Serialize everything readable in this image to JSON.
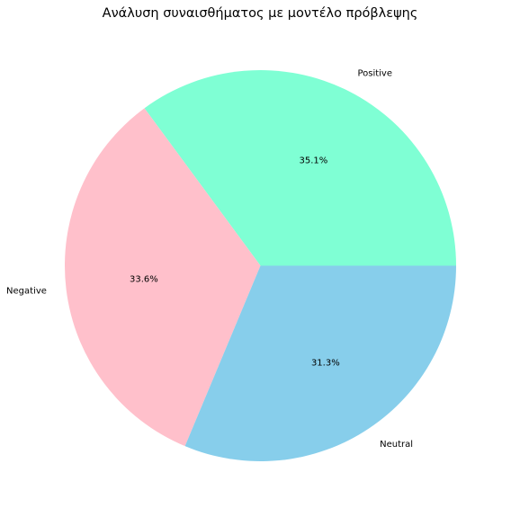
{
  "chart_data": {
    "type": "pie",
    "title": "Ανάλυση συναισθήματος με μοντέλο πρόβλεψης",
    "slices": [
      {
        "label": "Positive",
        "value": 35.1,
        "pct_label": "35.1%",
        "color": "#7fffd4"
      },
      {
        "label": "Negative",
        "value": 33.6,
        "pct_label": "33.6%",
        "color": "#ffc0cb"
      },
      {
        "label": "Neutral",
        "value": 31.3,
        "pct_label": "31.3%",
        "color": "#87ceeb"
      }
    ],
    "start_angle_deg": 0,
    "direction": "counterclockwise",
    "legend": "none"
  }
}
